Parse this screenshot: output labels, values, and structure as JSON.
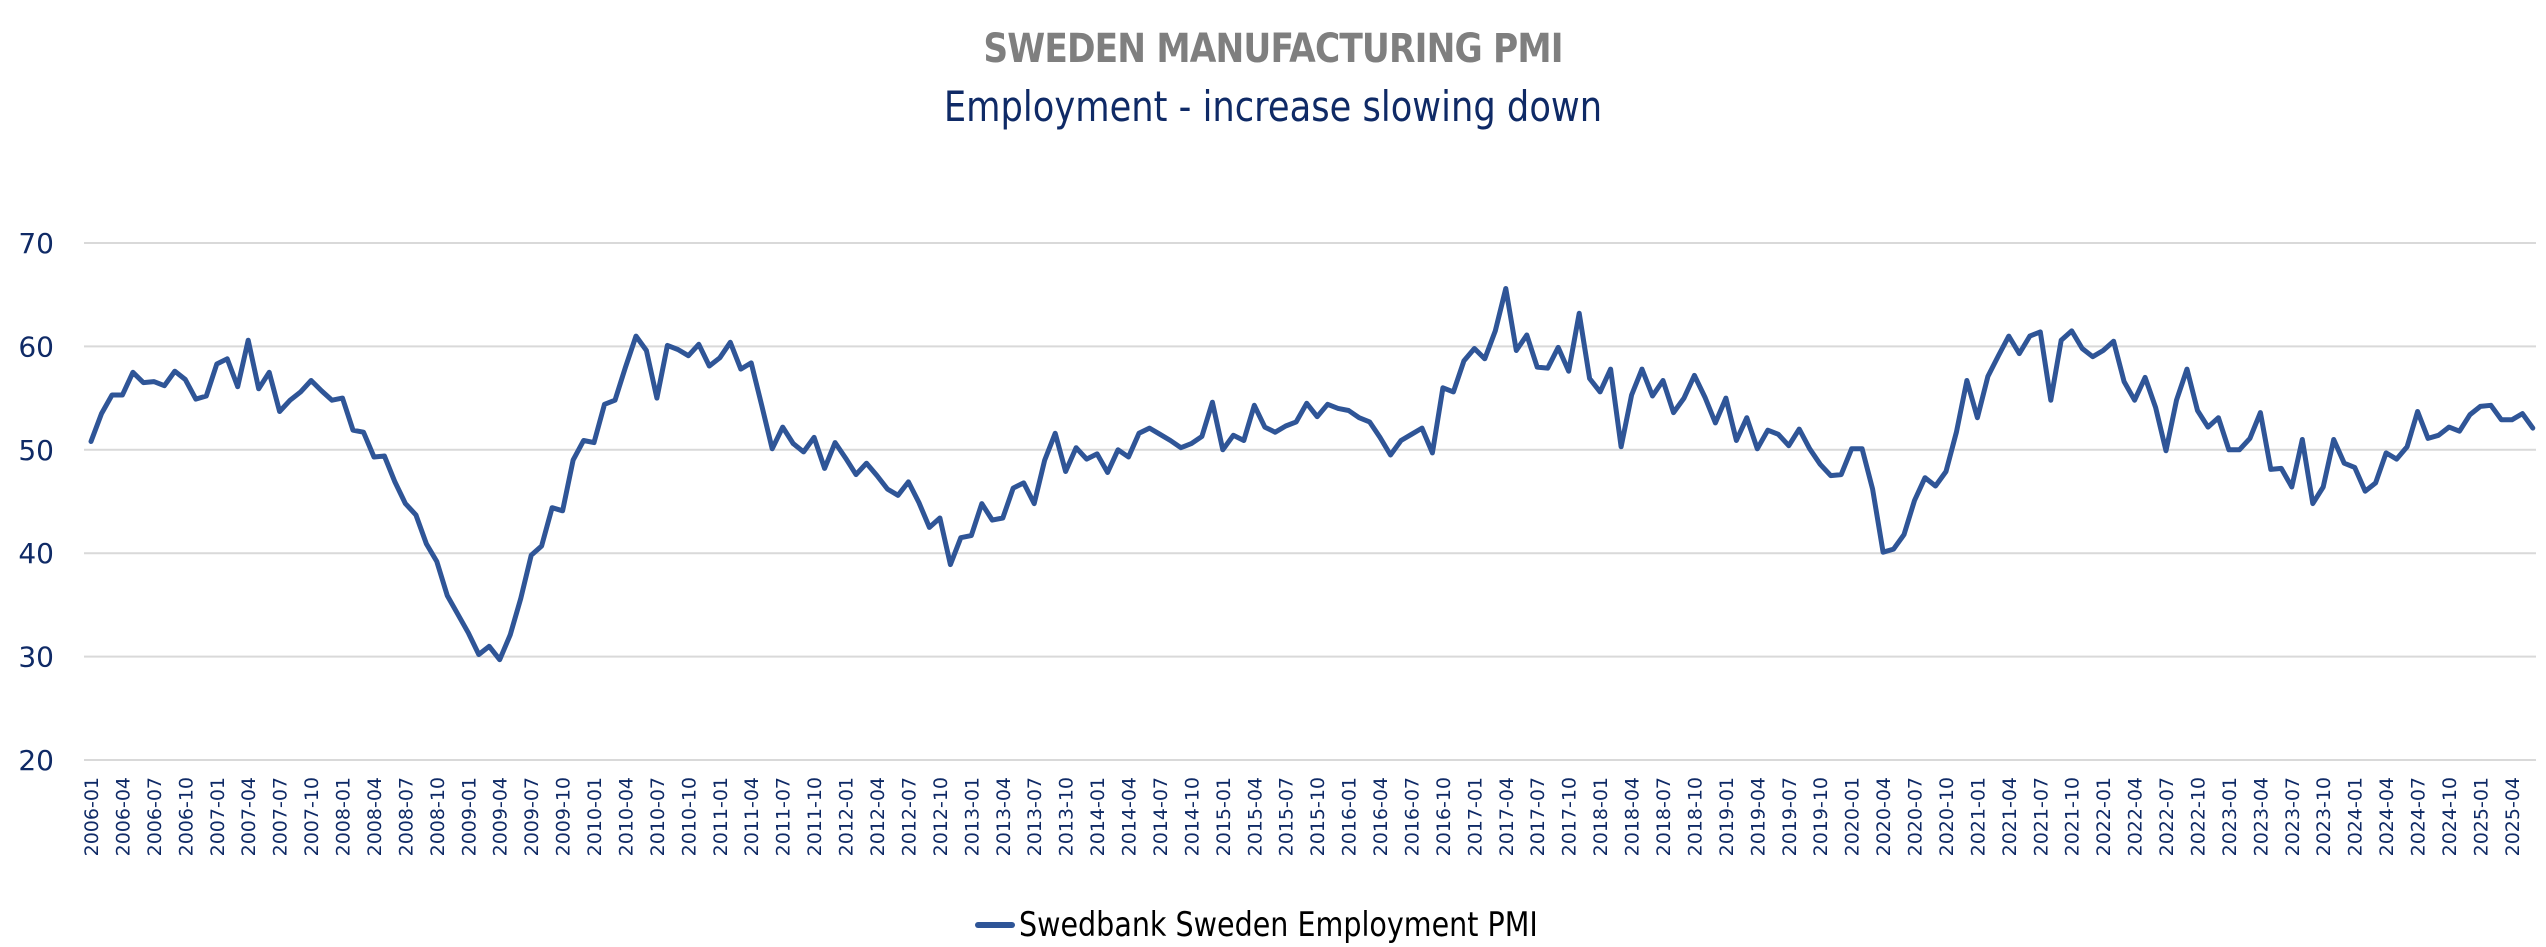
{
  "title": "SWEDEN MANUFACTURING PMI",
  "subtitle": "Employment - increase slowing down",
  "colors": {
    "line": "#2f5597",
    "grid": "#d9d9d9",
    "title": "#7f7f7f",
    "subtitle": "#0f2a66",
    "axis_text": "#0f2a66"
  },
  "legend": {
    "label": "Swedbank Sweden Employment PMI",
    "icon": "line-swatch-icon"
  },
  "chart_data": {
    "type": "line",
    "title": "SWEDEN MANUFACTURING PMI",
    "subtitle": "Employment - increase slowing down",
    "xlabel": "",
    "ylabel": "",
    "ylim": [
      20,
      70
    ],
    "yticks": [
      "20",
      "30",
      "40",
      "50",
      "60",
      "70"
    ],
    "grid": true,
    "legend_position": "bottom",
    "x_start": "2006-01",
    "x_end": "2025-06",
    "x_frequency": "monthly",
    "xtick_labels": [
      "2006-01",
      "2006-04",
      "2006-07",
      "2006-10",
      "2007-01",
      "2007-04",
      "2007-07",
      "2007-10",
      "2008-01",
      "2008-04",
      "2008-07",
      "2008-10",
      "2009-01",
      "2009-04",
      "2009-07",
      "2009-10",
      "2010-01",
      "2010-04",
      "2010-07",
      "2010-10",
      "2011-01",
      "2011-04",
      "2011-07",
      "2011-10",
      "2012-01",
      "2012-04",
      "2012-07",
      "2012-10",
      "2013-01",
      "2013-04",
      "2013-07",
      "2013-10",
      "2014-01",
      "2014-04",
      "2014-07",
      "2014-10",
      "2015-01",
      "2015-04",
      "2015-07",
      "2015-10",
      "2016-01",
      "2016-04",
      "2016-07",
      "2016-10",
      "2017-01",
      "2017-04",
      "2017-07",
      "2017-10",
      "2018-01",
      "2018-04",
      "2018-07",
      "2018-10",
      "2019-01",
      "2019-04",
      "2019-07",
      "2019-10",
      "2020-01",
      "2020-04",
      "2020-07",
      "2020-10",
      "2021-01",
      "2021-04",
      "2021-07",
      "2021-10",
      "2022-01",
      "2022-04",
      "2022-07",
      "2022-10",
      "2023-01",
      "2023-04",
      "2023-07",
      "2023-10",
      "2024-01",
      "2024-04",
      "2024-07",
      "2024-10",
      "2025-01",
      "2025-04"
    ],
    "series": [
      {
        "name": "Swedbank Sweden Employment PMI",
        "values": [
          50.8,
          53.5,
          55.3,
          55.3,
          57.5,
          56.5,
          56.6,
          56.2,
          57.6,
          56.8,
          54.9,
          55.2,
          58.3,
          58.8,
          56.1,
          60.6,
          55.9,
          57.5,
          53.7,
          54.8,
          55.6,
          56.7,
          55.7,
          54.8,
          55.0,
          51.9,
          51.7,
          49.3,
          49.4,
          46.9,
          44.8,
          43.7,
          40.9,
          39.2,
          35.9,
          34.1,
          32.3,
          30.2,
          31.0,
          29.7,
          32.1,
          35.6,
          39.8,
          40.7,
          44.4,
          44.1,
          49.0,
          50.9,
          50.7,
          54.4,
          54.8,
          58.0,
          61.0,
          59.6,
          55.0,
          60.1,
          59.7,
          59.1,
          60.2,
          58.1,
          58.9,
          60.4,
          57.8,
          58.4,
          54.3,
          50.1,
          52.2,
          50.6,
          49.8,
          51.2,
          48.2,
          50.7,
          49.2,
          47.6,
          48.7,
          47.5,
          46.2,
          45.6,
          46.9,
          44.9,
          42.5,
          43.4,
          38.9,
          41.5,
          41.7,
          44.8,
          43.2,
          43.4,
          46.3,
          46.8,
          44.8,
          49.0,
          51.6,
          47.9,
          50.2,
          49.1,
          49.6,
          47.8,
          50.0,
          49.3,
          51.6,
          52.1,
          51.5,
          50.9,
          50.2,
          50.6,
          51.3,
          54.6,
          50.0,
          51.4,
          50.9,
          54.3,
          52.2,
          51.7,
          52.3,
          52.7,
          54.5,
          53.2,
          54.4,
          54.0,
          53.8,
          53.1,
          52.7,
          51.2,
          49.5,
          50.9,
          51.5,
          52.1,
          49.7,
          56.0,
          55.6,
          58.6,
          59.8,
          58.8,
          61.5,
          65.6,
          59.6,
          61.1,
          58.0,
          57.9,
          59.9,
          57.6,
          63.2,
          56.9,
          55.6,
          57.8,
          50.3,
          55.3,
          57.8,
          55.2,
          56.7,
          53.6,
          55.0,
          57.2,
          55.1,
          52.6,
          55.0,
          50.9,
          53.1,
          50.1,
          51.9,
          51.5,
          50.4,
          52.0,
          50.1,
          48.6,
          47.5,
          47.6,
          50.1,
          50.1,
          46.2,
          40.1,
          40.4,
          41.8,
          45.1,
          47.3,
          46.5,
          47.9,
          51.7,
          56.7,
          53.1,
          57.1,
          59.1,
          61.0,
          59.3,
          61.0,
          61.4,
          54.8,
          60.6,
          61.5,
          59.8,
          59.0,
          59.6,
          60.5,
          56.6,
          54.8,
          57.0,
          54.1,
          49.9,
          54.8,
          57.8,
          53.8,
          52.2,
          53.1,
          50.0,
          50.0,
          51.1,
          53.6,
          48.1,
          48.2,
          46.4,
          51.0,
          44.8,
          46.4,
          51.0,
          48.7,
          48.3,
          46.0,
          46.8,
          49.7,
          49.1,
          50.3,
          53.7,
          51.1,
          51.4,
          52.2,
          51.8,
          53.4,
          54.2,
          54.3,
          52.9,
          52.9,
          53.5,
          52.1
        ]
      }
    ]
  }
}
